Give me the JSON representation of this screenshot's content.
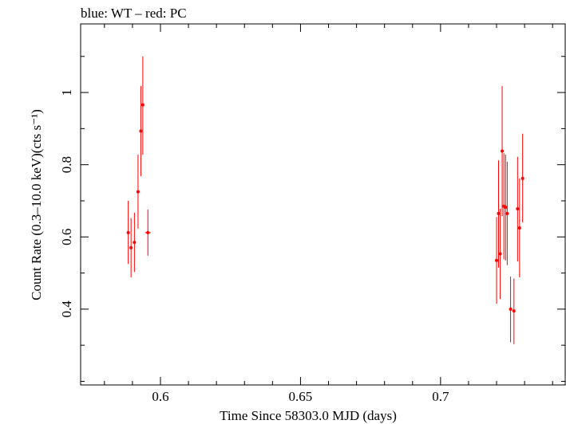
{
  "header": {
    "title": "blue: WT – red: PC"
  },
  "chart_data": {
    "type": "scatter",
    "title": "blue: WT – red: PC",
    "xlabel": "Time Since 58303.0 MJD (days)",
    "ylabel": "Count Rate (0.3–10.0 keV)(cts s⁻¹)",
    "xlim": [
      0.5715,
      0.7445
    ],
    "ylim": [
      0.19,
      1.19
    ],
    "x_ticks": [
      0.6,
      0.65,
      0.7
    ],
    "x_tick_labels": [
      "0.6",
      "0.65",
      "0.7"
    ],
    "y_ticks": [
      0.4,
      0.6,
      0.8,
      1.0
    ],
    "y_tick_labels": [
      "0.4",
      "0.6",
      "0.8",
      "1"
    ],
    "grid": false,
    "colors": {
      "PC": "#ff0000",
      "axes": "#000000"
    },
    "series": [
      {
        "name": "PC",
        "points": [
          {
            "x": 0.5885,
            "y": 0.612,
            "xerr": 0.0,
            "ylo": 0.525,
            "yhi": 0.7
          },
          {
            "x": 0.5895,
            "y": 0.57,
            "xerr": 0.0,
            "ylo": 0.488,
            "yhi": 0.652
          },
          {
            "x": 0.5907,
            "y": 0.585,
            "xerr": 0.0,
            "ylo": 0.503,
            "yhi": 0.667
          },
          {
            "x": 0.592,
            "y": 0.725,
            "xerr": 0.0,
            "ylo": 0.623,
            "yhi": 0.828
          },
          {
            "x": 0.593,
            "y": 0.893,
            "xerr": 0.0,
            "ylo": 0.768,
            "yhi": 1.018
          },
          {
            "x": 0.5937,
            "y": 0.966,
            "xerr": 0.0,
            "ylo": 0.828,
            "yhi": 1.1
          },
          {
            "x": 0.5955,
            "y": 0.612,
            "xerr": 0.001,
            "ylo": 0.548,
            "yhi": 0.676
          },
          {
            "x": 0.72,
            "y": 0.535,
            "xerr": 0.0,
            "ylo": 0.415,
            "yhi": 0.655
          },
          {
            "x": 0.7207,
            "y": 0.665,
            "xerr": 0.0,
            "ylo": 0.515,
            "yhi": 0.812
          },
          {
            "x": 0.7213,
            "y": 0.553,
            "xerr": 0.0,
            "ylo": 0.428,
            "yhi": 0.678
          },
          {
            "x": 0.722,
            "y": 0.838,
            "xerr": 0.0,
            "ylo": 0.658,
            "yhi": 1.018
          },
          {
            "x": 0.7226,
            "y": 0.685,
            "xerr": 0.0,
            "ylo": 0.538,
            "yhi": 0.832
          },
          {
            "x": 0.7232,
            "y": 0.682,
            "xerr": 0.0,
            "ylo": 0.535,
            "yhi": 0.828
          },
          {
            "x": 0.7238,
            "y": 0.665,
            "xerr": 0.0,
            "ylo": 0.522,
            "yhi": 0.808
          },
          {
            "x": 0.725,
            "y": 0.4,
            "xerr": 0.0,
            "ylo": 0.308,
            "yhi": 0.49
          },
          {
            "x": 0.7262,
            "y": 0.395,
            "xerr": 0.0,
            "ylo": 0.303,
            "yhi": 0.485
          },
          {
            "x": 0.7275,
            "y": 0.678,
            "xerr": 0.0,
            "ylo": 0.532,
            "yhi": 0.822
          },
          {
            "x": 0.7282,
            "y": 0.625,
            "xerr": 0.0,
            "ylo": 0.488,
            "yhi": 0.762
          },
          {
            "x": 0.7293,
            "y": 0.762,
            "xerr": 0.0,
            "ylo": 0.64,
            "yhi": 0.886
          }
        ]
      }
    ]
  }
}
